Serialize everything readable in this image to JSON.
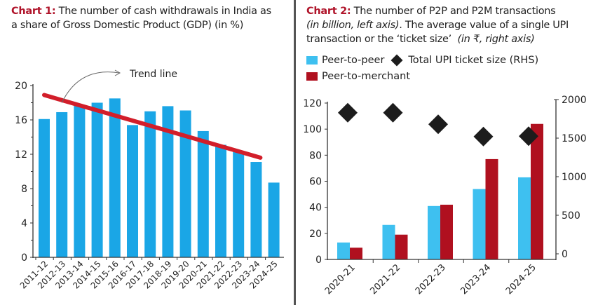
{
  "colors": {
    "title_accent": "#b0152b",
    "bar_blue": "#1aa6e6",
    "p2p": "#3ec0f0",
    "p2m": "#b0101f",
    "trend": "#d21e2a",
    "diamond": "#1c1c1c",
    "axis": "#333333"
  },
  "chart1": {
    "title_lead": "Chart 1:",
    "title_line1": " The number of cash withdrawals in India as",
    "title_line2": "a share of Gross Domestic Product (GDP) (in %)",
    "annotation": "Trend line"
  },
  "chart2": {
    "title_lead": "Chart 2:",
    "title_line1": " The number of P2P and P2M transactions",
    "title_line2_italic": "(in billion, left axis)",
    "title_line2_rest": ". The average value of a single UPI",
    "title_line3": "transaction or the ‘ticket size’",
    "title_line3_italic": "(in ₹, right axis)",
    "legend_p2p": "Peer-to-peer",
    "legend_ticket": "Total UPI ticket size (RHS)",
    "legend_p2m": "Peer-to-merchant"
  },
  "chart_data": [
    {
      "type": "bar",
      "title": "Chart 1: The number of cash withdrawals in India as a share of Gross Domestic Product (GDP) (in %)",
      "xlabel": "",
      "ylabel": "",
      "categories": [
        "2011-12",
        "2012-13",
        "2013-14",
        "2014-15",
        "2015-16",
        "2016-17",
        "2017-18",
        "2018-19",
        "2019-20",
        "2020-21",
        "2021-22",
        "2022-23",
        "2023-24",
        "2024-25"
      ],
      "values": [
        16.1,
        16.9,
        17.7,
        18.0,
        18.5,
        15.4,
        17.0,
        17.6,
        17.1,
        14.7,
        13.1,
        12.3,
        11.1,
        8.7
      ],
      "ylim": [
        0,
        20
      ],
      "yticks": [
        0,
        4,
        8,
        12,
        16,
        20
      ],
      "trend_line": {
        "label": "Trend line",
        "from": {
          "category": "2011-12",
          "value": 18.9
        },
        "to": {
          "category": "2023-24",
          "value": 11.6
        }
      },
      "grid": false
    },
    {
      "type": "bar",
      "title": "Chart 2: The number of P2P and P2M transactions (in billion, left axis). The average value of a single UPI transaction or the ‘ticket size’ (in ₹, right axis)",
      "categories": [
        "2020-21",
        "2021-22",
        "2022-23",
        "2023-24",
        "2024-25"
      ],
      "series": [
        {
          "name": "Peer-to-peer",
          "axis": "left",
          "kind": "bar",
          "values": [
            13,
            26.5,
            41,
            54,
            63
          ]
        },
        {
          "name": "Peer-to-merchant",
          "axis": "left",
          "kind": "bar",
          "values": [
            9,
            19,
            42,
            77,
            104
          ]
        },
        {
          "name": "Total UPI ticket size (RHS)",
          "axis": "right",
          "kind": "scatter-diamond",
          "values": [
            1830,
            1830,
            1680,
            1520,
            1525
          ]
        }
      ],
      "ylim": [
        0,
        120
      ],
      "yticks": [
        0,
        20,
        40,
        60,
        80,
        100,
        120
      ],
      "y2lim": [
        0,
        2000
      ],
      "y2ticks": [
        0,
        500,
        1000,
        1500,
        2000
      ],
      "legend": "top-left",
      "grid": false
    }
  ]
}
